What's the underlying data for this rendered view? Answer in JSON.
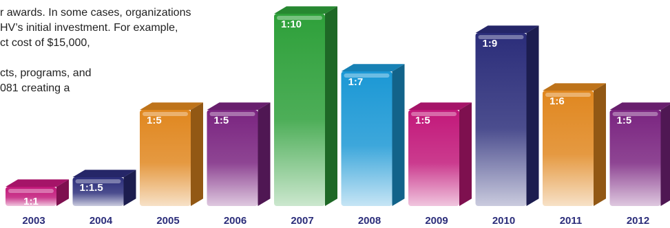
{
  "text_lines": [
    "r awards. In some cases, organizations",
    "HV’s initial investment. For example,",
    "ct cost of $15,000,",
    "",
    "cts, programs, and",
    "081 creating a"
  ],
  "chart_data": {
    "type": "bar",
    "categories": [
      "2003",
      "2004",
      "2005",
      "2006",
      "2007",
      "2008",
      "2009",
      "2010",
      "2011",
      "2012"
    ],
    "values": [
      1,
      1.5,
      5,
      5,
      10,
      7,
      5,
      9,
      6,
      5
    ],
    "bar_labels": [
      "1:1",
      "1:1.5",
      "1:5",
      "1:5",
      "1:10",
      "1:7",
      "1:5",
      "1:9",
      "1:6",
      "1:5"
    ],
    "title": "",
    "xlabel": "",
    "ylabel": "",
    "ylim": [
      0,
      10
    ],
    "colors": [
      "#c2187a",
      "#2b2d7a",
      "#e0871f",
      "#7a2480",
      "#2ea03a",
      "#1b98d5",
      "#c2187a",
      "#2b2d7a",
      "#e0871f",
      "#7a2480"
    ],
    "year_color": "#2b2d7a"
  }
}
